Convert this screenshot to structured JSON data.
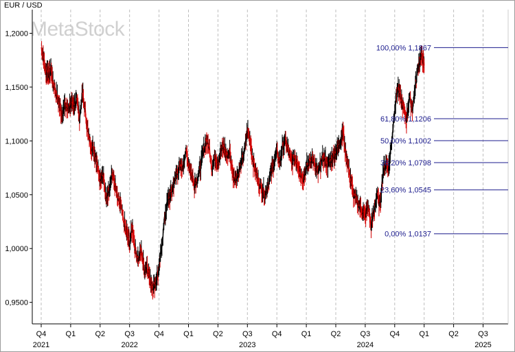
{
  "chart_data": {
    "type": "line",
    "title": "EUR / USD",
    "watermark": "MetaStock",
    "ylim": [
      0.93,
      1.222
    ],
    "y_ticks": [
      "1,2000",
      "1,1500",
      "1,1000",
      "1,0500",
      "1,0000",
      "0,9500"
    ],
    "y_tick_values": [
      1.2,
      1.15,
      1.1,
      1.05,
      1.0,
      0.95
    ],
    "x_quarters": [
      "Q4",
      "Q1",
      "Q2",
      "Q3",
      "Q4",
      "Q1",
      "Q2",
      "Q3",
      "Q4",
      "Q1",
      "Q2",
      "Q3",
      "Q4",
      "Q1",
      "Q2",
      "Q3"
    ],
    "x_years": [
      "2021",
      "2022",
      "2023",
      "2024",
      "2025"
    ],
    "x_year_quarter_index": [
      0,
      3,
      7,
      11,
      15
    ],
    "grid": "vertical-dashed",
    "fibonacci": {
      "color": "#1a1a8c",
      "levels": [
        {
          "label": "100,00% 1,1867",
          "value": 1.1867
        },
        {
          "label": "61,80% 1,1206",
          "value": 1.1206
        },
        {
          "label": "50,00% 1,1002",
          "value": 1.1002
        },
        {
          "label": "38,20% 1,0798",
          "value": 1.0798
        },
        {
          "label": "23,60% 1,0545",
          "value": 1.0545
        },
        {
          "label": "0,00% 1,0137",
          "value": 1.0137
        }
      ]
    },
    "series": [
      {
        "color_up": "#000000",
        "color_down": "#d40000",
        "points": [
          [
            0,
            1.187
          ],
          [
            0.08,
            1.178
          ],
          [
            0.16,
            1.162
          ],
          [
            0.22,
            1.165
          ],
          [
            0.28,
            1.16
          ],
          [
            0.33,
            1.168
          ],
          [
            0.4,
            1.155
          ],
          [
            0.5,
            1.145
          ],
          [
            0.6,
            1.135
          ],
          [
            0.7,
            1.125
          ],
          [
            0.8,
            1.133
          ],
          [
            0.9,
            1.13
          ],
          [
            1.0,
            1.135
          ],
          [
            1.1,
            1.13
          ],
          [
            1.2,
            1.142
          ],
          [
            1.3,
            1.12
          ],
          [
            1.4,
            1.145
          ],
          [
            1.5,
            1.126
          ],
          [
            1.6,
            1.105
          ],
          [
            1.7,
            1.095
          ],
          [
            1.8,
            1.09
          ],
          [
            1.9,
            1.08
          ],
          [
            2.0,
            1.065
          ],
          [
            2.1,
            1.07
          ],
          [
            2.2,
            1.045
          ],
          [
            2.3,
            1.055
          ],
          [
            2.4,
            1.07
          ],
          [
            2.5,
            1.06
          ],
          [
            2.6,
            1.045
          ],
          [
            2.7,
            1.04
          ],
          [
            2.8,
            1.025
          ],
          [
            2.9,
            1.015
          ],
          [
            3.0,
            1.005
          ],
          [
            3.1,
            1.02
          ],
          [
            3.2,
            0.998
          ],
          [
            3.3,
            0.99
          ],
          [
            3.4,
            0.998
          ],
          [
            3.5,
            0.98
          ],
          [
            3.6,
            0.985
          ],
          [
            3.7,
            0.97
          ],
          [
            3.8,
            0.964
          ],
          [
            3.9,
            0.97
          ],
          [
            4.0,
            0.98
          ],
          [
            4.1,
            1.005
          ],
          [
            4.2,
            1.03
          ],
          [
            4.3,
            1.045
          ],
          [
            4.4,
            1.05
          ],
          [
            4.5,
            1.06
          ],
          [
            4.6,
            1.07
          ],
          [
            4.7,
            1.075
          ],
          [
            4.8,
            1.075
          ],
          [
            4.9,
            1.09
          ],
          [
            5.0,
            1.08
          ],
          [
            5.1,
            1.07
          ],
          [
            5.2,
            1.06
          ],
          [
            5.3,
            1.065
          ],
          [
            5.4,
            1.075
          ],
          [
            5.5,
            1.09
          ],
          [
            5.6,
            1.1
          ],
          [
            5.7,
            1.095
          ],
          [
            5.8,
            1.075
          ],
          [
            5.9,
            1.085
          ],
          [
            6.0,
            1.08
          ],
          [
            6.1,
            1.09
          ],
          [
            6.2,
            1.095
          ],
          [
            6.3,
            1.085
          ],
          [
            6.4,
            1.09
          ],
          [
            6.5,
            1.07
          ],
          [
            6.6,
            1.065
          ],
          [
            6.7,
            1.07
          ],
          [
            6.8,
            1.08
          ],
          [
            6.9,
            1.09
          ],
          [
            7.0,
            1.11
          ],
          [
            7.1,
            1.1
          ],
          [
            7.2,
            1.08
          ],
          [
            7.3,
            1.07
          ],
          [
            7.4,
            1.06
          ],
          [
            7.5,
            1.055
          ],
          [
            7.6,
            1.05
          ],
          [
            7.7,
            1.06
          ],
          [
            7.8,
            1.07
          ],
          [
            7.9,
            1.08
          ],
          [
            8.0,
            1.09
          ],
          [
            8.1,
            1.08
          ],
          [
            8.2,
            1.095
          ],
          [
            8.3,
            1.1
          ],
          [
            8.4,
            1.09
          ],
          [
            8.5,
            1.08
          ],
          [
            8.6,
            1.085
          ],
          [
            8.7,
            1.08
          ],
          [
            8.8,
            1.07
          ],
          [
            8.9,
            1.065
          ],
          [
            9.0,
            1.075
          ],
          [
            9.1,
            1.08
          ],
          [
            9.2,
            1.085
          ],
          [
            9.3,
            1.075
          ],
          [
            9.4,
            1.07
          ],
          [
            9.5,
            1.08
          ],
          [
            9.6,
            1.085
          ],
          [
            9.7,
            1.078
          ],
          [
            9.8,
            1.08
          ],
          [
            9.9,
            1.085
          ],
          [
            10.0,
            1.09
          ],
          [
            10.1,
            1.095
          ],
          [
            10.2,
            1.105
          ],
          [
            10.25,
            1.11
          ],
          [
            10.3,
            1.095
          ],
          [
            10.4,
            1.08
          ],
          [
            10.5,
            1.065
          ],
          [
            10.6,
            1.05
          ],
          [
            10.7,
            1.045
          ],
          [
            10.8,
            1.04
          ],
          [
            10.9,
            1.035
          ],
          [
            11.0,
            1.03
          ],
          [
            11.1,
            1.04
          ],
          [
            11.2,
            1.02
          ],
          [
            11.3,
            1.035
          ],
          [
            11.4,
            1.05
          ],
          [
            11.5,
            1.04
          ],
          [
            11.6,
            1.07
          ],
          [
            11.7,
            1.08
          ],
          [
            11.8,
            1.075
          ],
          [
            11.9,
            1.1
          ],
          [
            12.0,
            1.13
          ],
          [
            12.1,
            1.15
          ],
          [
            12.2,
            1.14
          ],
          [
            12.3,
            1.13
          ],
          [
            12.4,
            1.12
          ],
          [
            12.5,
            1.14
          ],
          [
            12.6,
            1.13
          ],
          [
            12.7,
            1.15
          ],
          [
            12.8,
            1.17
          ],
          [
            12.9,
            1.18
          ],
          [
            12.96,
            1.175
          ],
          [
            13.0,
            1.17
          ]
        ]
      }
    ]
  }
}
